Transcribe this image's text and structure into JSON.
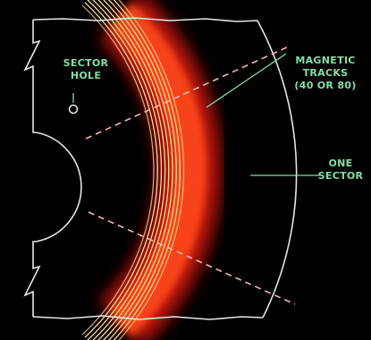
{
  "labels": {
    "sector_hole_line1": "SECTOR",
    "sector_hole_line2": "HOLE",
    "tracks_line1": "MAGNETIC",
    "tracks_line2": "TRACKS",
    "tracks_line3": "(40 OR 80)",
    "sector_line1": "ONE",
    "sector_line2": "SECTOR"
  },
  "colors": {
    "background": "#000000",
    "outline": "#e6e6e6",
    "label": "#7fe0a6",
    "leader": "#7fe0a6",
    "track": "#ffd98a",
    "glow": "#ff3a14",
    "sector_boundary": "#f2b5b0"
  }
}
